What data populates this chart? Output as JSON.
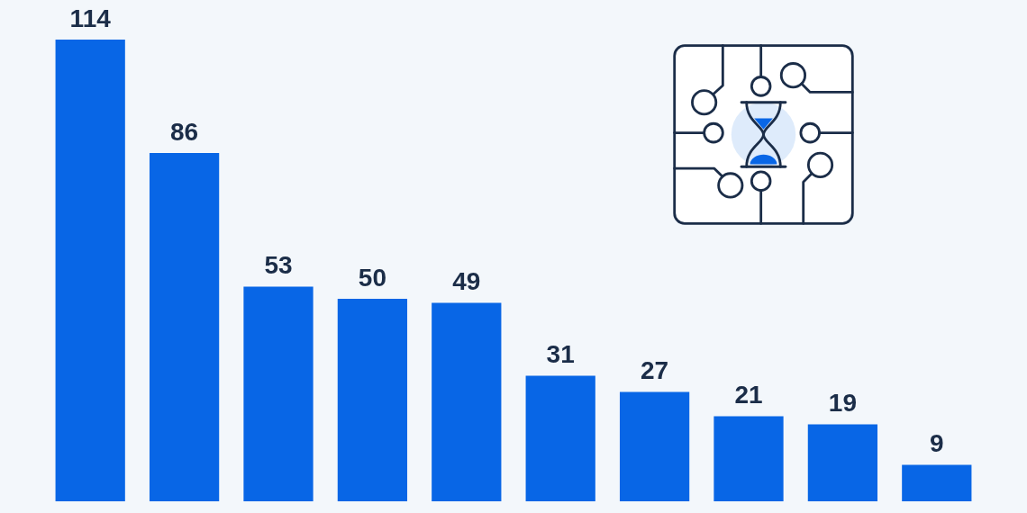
{
  "chart_data": {
    "type": "bar",
    "categories": [
      null,
      null,
      null,
      null,
      null,
      null,
      null,
      null,
      null,
      null
    ],
    "values": [
      114,
      86,
      53,
      50,
      49,
      31,
      27,
      21,
      19,
      9
    ],
    "color": "#0866e6",
    "data_labels": true
  }
}
